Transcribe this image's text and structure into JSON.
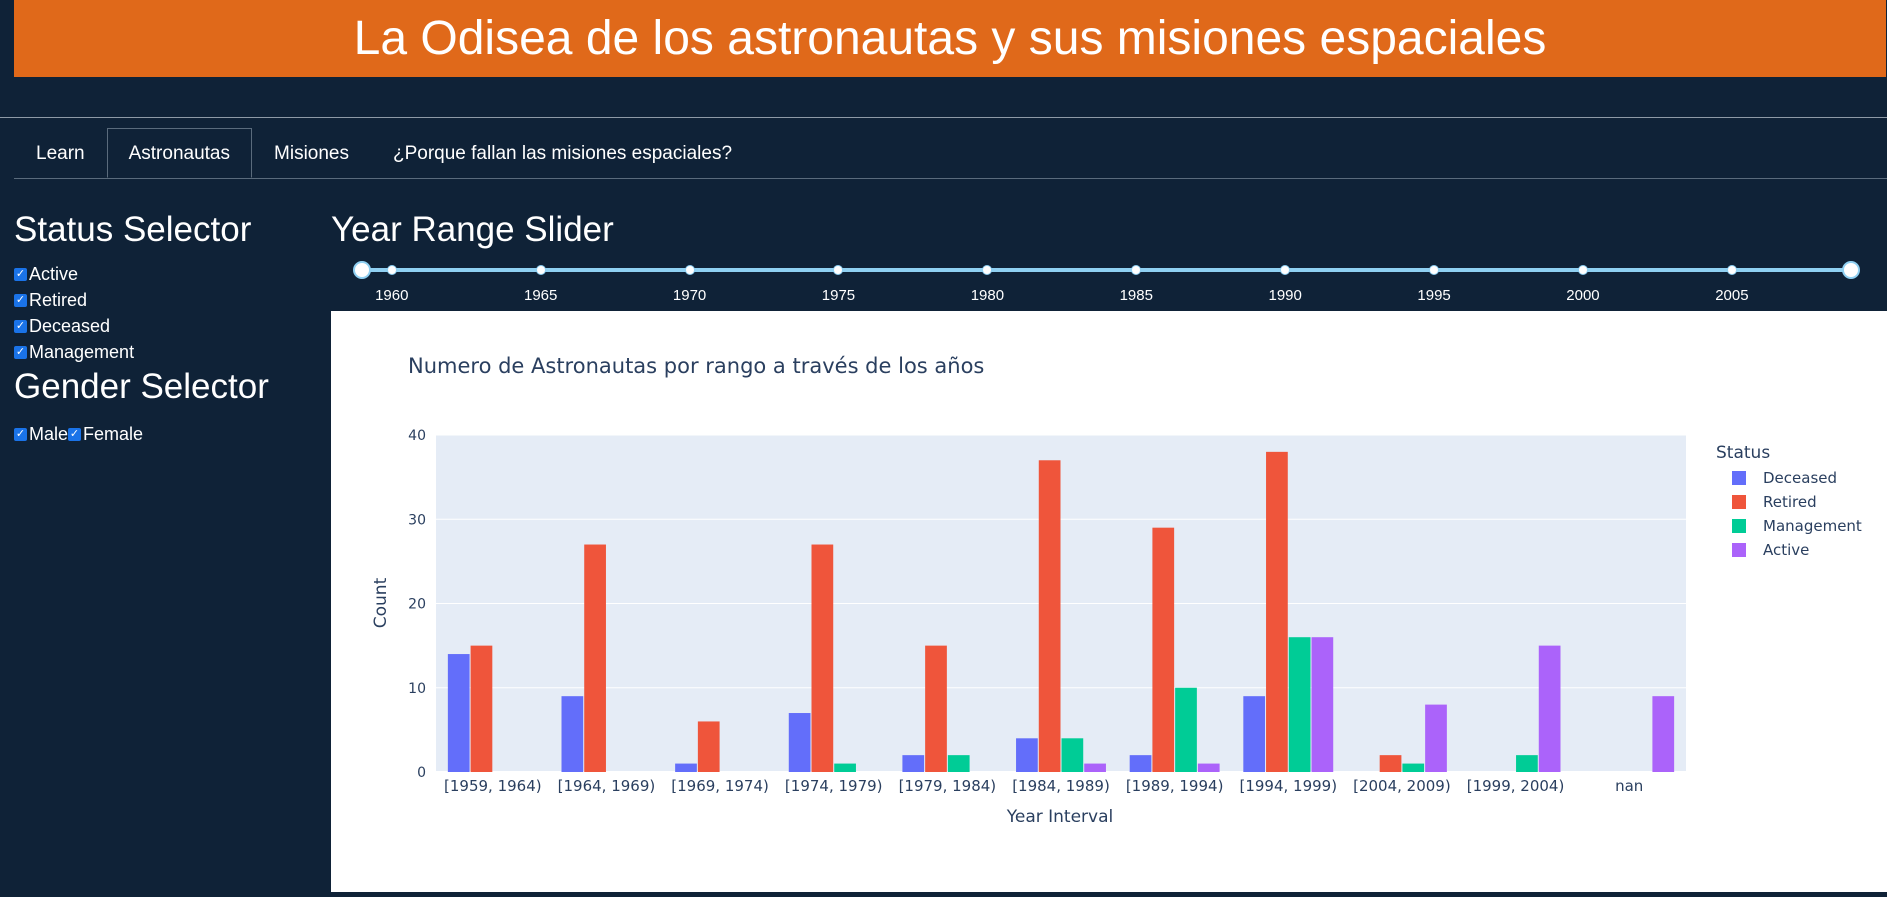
{
  "header": {
    "title": "La Odisea de los astronautas y sus misiones espaciales"
  },
  "tabs": [
    "Learn",
    "Astronautas",
    "Misiones",
    "¿Porque fallan las misiones espaciales?"
  ],
  "active_tab": "Astronautas",
  "status_selector": {
    "title": "Status Selector",
    "options": [
      {
        "label": "Active",
        "checked": true
      },
      {
        "label": "Retired",
        "checked": true
      },
      {
        "label": "Deceased",
        "checked": true
      },
      {
        "label": "Management",
        "checked": true
      }
    ]
  },
  "gender_selector": {
    "title": "Gender Selector",
    "options": [
      {
        "label": "Male",
        "checked": true
      },
      {
        "label": "Female",
        "checked": true
      }
    ]
  },
  "year_slider": {
    "title": "Year Range Slider",
    "marks": [
      "1960",
      "1965",
      "1970",
      "1975",
      "1980",
      "1985",
      "1990",
      "1995",
      "2000",
      "2005"
    ],
    "min": 1959,
    "max": 2009,
    "selected": [
      1959,
      2009
    ]
  },
  "colors": {
    "Deceased": "#636efa",
    "Retired": "#ef553b",
    "Management": "#00cc96",
    "Active": "#ab63fa",
    "header_bg": "#e0691a",
    "page_bg": "#0f2237"
  },
  "chart_data": {
    "type": "bar",
    "title": "Numero de Astronautas por rango a través de los años",
    "xlabel": "Year Interval",
    "ylabel": "Count",
    "ylim": [
      0,
      40
    ],
    "yticks": [
      0,
      10,
      20,
      30,
      40
    ],
    "legend_title": "Status",
    "legend_position": "top-right",
    "grid": true,
    "categories": [
      "[1959, 1964)",
      "[1964, 1969)",
      "[1969, 1974)",
      "[1974, 1979)",
      "[1979, 1984)",
      "[1984, 1989)",
      "[1989, 1994)",
      "[1994, 1999)",
      "[2004, 2009)",
      "[1999, 2004)",
      "nan"
    ],
    "series": [
      {
        "name": "Deceased",
        "values": [
          14,
          9,
          1,
          7,
          2,
          4,
          2,
          9,
          0,
          0,
          0
        ]
      },
      {
        "name": "Retired",
        "values": [
          15,
          27,
          6,
          27,
          15,
          37,
          29,
          38,
          2,
          0,
          0
        ]
      },
      {
        "name": "Management",
        "values": [
          0,
          0,
          0,
          1,
          2,
          4,
          10,
          16,
          1,
          2,
          0
        ]
      },
      {
        "name": "Active",
        "values": [
          0,
          0,
          0,
          0,
          0,
          1,
          1,
          16,
          8,
          15,
          9
        ]
      }
    ]
  }
}
